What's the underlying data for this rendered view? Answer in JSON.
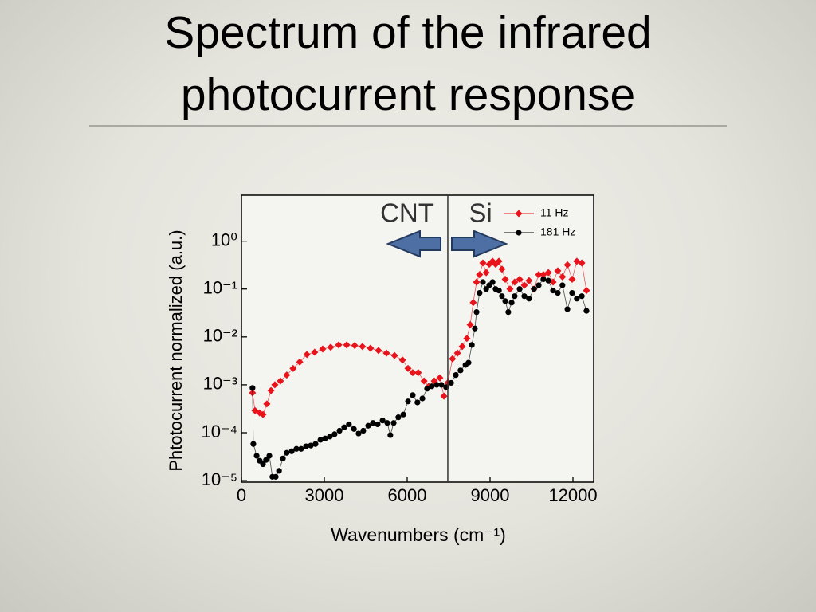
{
  "chart_data": {
    "type": "line",
    "title": "Spectrum of the infrared photocurrent response",
    "xlabel": "Wavenumbers (cm⁻¹)",
    "ylabel": "Phtotocurrent normalized (a.u.)",
    "annotations": [
      "CNT",
      "Si"
    ],
    "divider_x": 7470,
    "log_y": true,
    "legend": "upper right",
    "xlim": [
      0,
      12750
    ],
    "xticks": [
      0,
      3000,
      6000,
      9000,
      12000
    ],
    "ylim": [
      9.3e-06,
      9.1
    ],
    "yticks": [
      {
        "value": 1,
        "label": "10⁰"
      },
      {
        "value": 0.1,
        "label": "10⁻¹"
      },
      {
        "value": 0.01,
        "label": "10⁻²"
      },
      {
        "value": 0.001,
        "label": "10⁻³"
      },
      {
        "value": 0.0001,
        "label": "10⁻⁴"
      },
      {
        "value": 1e-05,
        "label": "10⁻⁵"
      }
    ],
    "series": [
      {
        "name": "11 Hz",
        "color": "#e8131b",
        "marker": "diamond",
        "x": [
          400,
          490,
          660,
          780,
          920,
          1070,
          1210,
          1410,
          1640,
          1870,
          2110,
          2370,
          2650,
          2940,
          3230,
          3520,
          3810,
          4100,
          4380,
          4670,
          4960,
          5250,
          5540,
          5830,
          6030,
          6200,
          6400,
          6610,
          6780,
          6980,
          7180,
          7330,
          7470,
          7640,
          7820,
          7990,
          8160,
          8280,
          8390,
          8510,
          8620,
          8740,
          8860,
          8970,
          9090,
          9200,
          9320,
          9430,
          9550,
          9720,
          9890,
          10070,
          10240,
          10410,
          10590,
          10760,
          10930,
          11110,
          11280,
          11450,
          11620,
          11800,
          11970,
          12140,
          12320,
          12490
        ],
        "values": [
          0.00068,
          0.00029,
          0.00026,
          0.00024,
          0.0004,
          0.00076,
          0.001,
          0.0012,
          0.0016,
          0.0022,
          0.003,
          0.0043,
          0.0048,
          0.0056,
          0.0061,
          0.0068,
          0.0068,
          0.0066,
          0.0063,
          0.0058,
          0.0052,
          0.0046,
          0.0041,
          0.0033,
          0.0022,
          0.0018,
          0.0018,
          0.0012,
          0.00093,
          0.0012,
          0.0014,
          0.00058,
          0.0011,
          0.0035,
          0.0046,
          0.0063,
          0.0093,
          0.018,
          0.052,
          0.14,
          0.2,
          0.35,
          0.22,
          0.33,
          0.38,
          0.33,
          0.38,
          0.26,
          0.16,
          0.1,
          0.14,
          0.16,
          0.12,
          0.15,
          0.1,
          0.2,
          0.2,
          0.22,
          0.14,
          0.24,
          0.18,
          0.32,
          0.16,
          0.38,
          0.35,
          0.093
        ]
      },
      {
        "name": "181 Hz",
        "color": "#000000",
        "marker": "circle",
        "x": [
          400,
          430,
          550,
          660,
          780,
          890,
          1010,
          1120,
          1240,
          1360,
          1500,
          1640,
          1820,
          1990,
          2160,
          2340,
          2510,
          2680,
          2860,
          3030,
          3200,
          3370,
          3550,
          3720,
          3890,
          4070,
          4240,
          4410,
          4590,
          4760,
          4930,
          5110,
          5280,
          5390,
          5510,
          5680,
          5860,
          6030,
          6200,
          6370,
          6550,
          6720,
          6890,
          7070,
          7240,
          7410,
          7590,
          7760,
          7930,
          8110,
          8220,
          8340,
          8450,
          8510,
          8620,
          8740,
          8860,
          8970,
          9090,
          9200,
          9320,
          9430,
          9550,
          9660,
          9780,
          9890,
          10070,
          10240,
          10410,
          10590,
          10760,
          10930,
          11110,
          11280,
          11450,
          11620,
          11800,
          11970,
          12140,
          12320,
          12490
        ],
        "values": [
          0.00086,
          5.8e-05,
          3.3e-05,
          2.6e-05,
          2.2e-05,
          2.7e-05,
          3.3e-05,
          1.2e-05,
          1.2e-05,
          1.6e-05,
          2.9e-05,
          3.8e-05,
          4.1e-05,
          4.6e-05,
          4.6e-05,
          5.2e-05,
          5.4e-05,
          5.8e-05,
          7.1e-05,
          7.6e-05,
          8.3e-05,
          9.3e-05,
          0.00011,
          0.00013,
          0.00015,
          0.00012,
          9.6e-05,
          0.00011,
          0.00014,
          0.00016,
          0.00015,
          0.00018,
          0.00016,
          8.9e-05,
          0.00016,
          0.00021,
          0.00024,
          0.00045,
          0.00061,
          0.00043,
          0.00052,
          0.00083,
          0.00093,
          0.001,
          0.001,
          0.00089,
          0.0011,
          0.0016,
          0.002,
          0.0026,
          0.0029,
          0.0068,
          0.015,
          0.033,
          0.083,
          0.14,
          0.1,
          0.12,
          0.14,
          0.1,
          0.093,
          0.071,
          0.056,
          0.033,
          0.052,
          0.071,
          0.1,
          0.071,
          0.063,
          0.1,
          0.12,
          0.16,
          0.15,
          0.093,
          0.083,
          0.12,
          0.038,
          0.083,
          0.063,
          0.071,
          0.035
        ]
      }
    ]
  }
}
